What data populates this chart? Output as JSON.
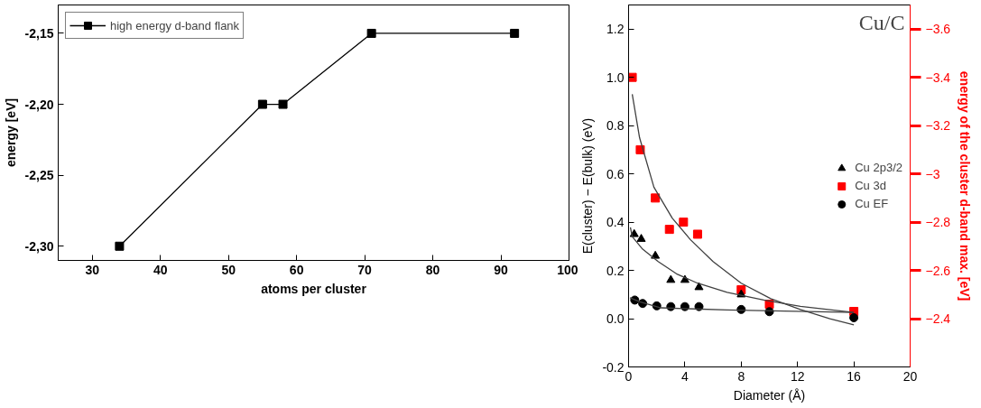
{
  "chart_data": [
    {
      "type": "line",
      "xlabel": "atoms per cluster",
      "ylabel": "energy [eV]",
      "x": [
        34,
        55,
        58,
        71,
        92
      ],
      "series": [
        {
          "name": "high energy d-band flank",
          "color": "#000000",
          "values": [
            -2.3,
            -2.2,
            -2.2,
            -2.15,
            -2.15
          ]
        }
      ],
      "xlim": [
        25,
        100
      ],
      "xticks": [
        30,
        40,
        50,
        60,
        70,
        80,
        90,
        100
      ],
      "ylim": [
        -2.31,
        -2.13
      ],
      "yticks": [
        {
          "value": -2.3,
          "label": "-2,30"
        },
        {
          "value": -2.25,
          "label": "-2,25"
        },
        {
          "value": -2.2,
          "label": "-2,20"
        },
        {
          "value": -2.15,
          "label": "-2,15"
        }
      ],
      "marker": "square",
      "line_style": "solid",
      "legend": "top left",
      "grid": false
    },
    {
      "type": "scatter",
      "xlabel": "Diameter (Å)",
      "ylabel": "E(cluster) − E(bulk) (eV)",
      "y2label": "energy of the cluster d-band max. [eV]",
      "annotations": [
        "Cu/C"
      ],
      "series": [
        {
          "name": "Cu 2p3/2",
          "color": "#000000",
          "marker": "triangle",
          "x": [
            0.4,
            0.9,
            1.9,
            3.0,
            4.0,
            5.0,
            8.0
          ],
          "values": [
            0.35,
            0.33,
            0.26,
            0.16,
            0.16,
            0.13,
            0.1
          ]
        },
        {
          "name": "Cu 3d",
          "color": "#ff0000",
          "marker": "square",
          "axis": "y2",
          "x": [
            0.26,
            0.83,
            1.9,
            2.9,
            3.9,
            4.9,
            8.0,
            10.0,
            16.0
          ],
          "values": [
            -3.4,
            -3.1,
            -2.9,
            -2.77,
            -2.8,
            -2.75,
            -2.52,
            -2.46,
            -2.43
          ]
        },
        {
          "name": "Cu EF",
          "color": "#000000",
          "marker": "circle",
          "x": [
            0.44,
            1.0,
            2.0,
            3.0,
            4.0,
            5.0,
            8.0,
            10.0,
            16.0
          ],
          "values": [
            0.077,
            0.063,
            0.053,
            0.05,
            0.05,
            0.05,
            0.038,
            0.029,
            0.004
          ]
        },
        {
          "type": "line",
          "color": "#404040",
          "x": [
            0.26,
            0.78,
            1.8,
            3.1,
            4.4,
            6.0,
            8.0,
            10.1,
            12.2,
            14.3,
            16.0
          ],
          "values": [
            0.93,
            0.75,
            0.545,
            0.417,
            0.327,
            0.237,
            0.147,
            0.083,
            0.038,
            0.0,
            -0.026
          ]
        },
        {
          "type": "line",
          "color": "#404040",
          "x": [
            0.13,
            0.26,
            1.0,
            2.1,
            3.4,
            4.9,
            7.0,
            9.6,
            12.2,
            16.0
          ],
          "values": [
            0.378,
            0.34,
            0.288,
            0.237,
            0.186,
            0.147,
            0.109,
            0.077,
            0.051,
            0.026
          ]
        },
        {
          "type": "line",
          "color": "#404040",
          "x": [
            0.1,
            0.8,
            2.3,
            7.0,
            16.0
          ],
          "values": [
            0.087,
            0.07,
            0.045,
            0.036,
            0.026
          ]
        }
      ],
      "xlim": [
        0,
        20
      ],
      "xticks": [
        0,
        4,
        8,
        12,
        16,
        20
      ],
      "ylim": [
        -0.2,
        1.3
      ],
      "yticks": [
        {
          "value": -0.2,
          "label": "-0.2"
        },
        {
          "value": 0,
          "label": "0.0"
        },
        {
          "value": 0.2,
          "label": "0.2"
        },
        {
          "value": 0.4,
          "label": "0.4"
        },
        {
          "value": 0.6,
          "label": "0.6"
        },
        {
          "value": 0.8,
          "label": "0.8"
        },
        {
          "value": 1.0,
          "label": "1.0"
        },
        {
          "value": 1.2,
          "label": "1.2"
        }
      ],
      "y2lim": [
        -2.2,
        -3.7
      ],
      "y2ticks": [
        -3.6,
        -3.4,
        -3.2,
        -3.0,
        -2.8,
        -2.6,
        -2.4
      ],
      "legend": "right",
      "grid": false
    }
  ]
}
